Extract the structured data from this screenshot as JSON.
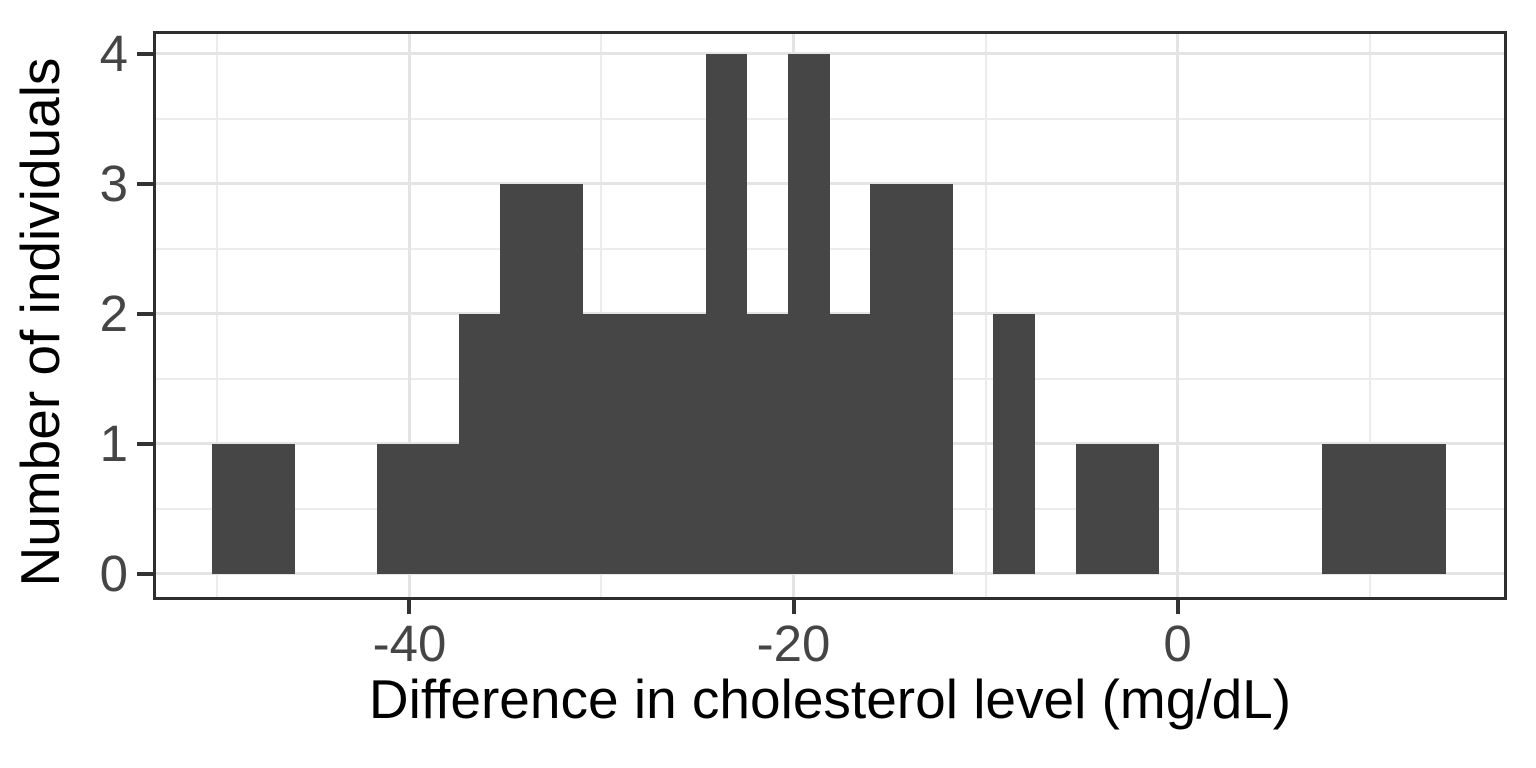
{
  "page": {
    "background": "#ffffff"
  },
  "chart_data": {
    "type": "bar",
    "subtype": "histogram",
    "title": "",
    "xlabel": "Difference in cholesterol level (mg/dL)",
    "ylabel": "Number of individuals",
    "grid": "on",
    "legend": "none",
    "xlim": [
      -53.2,
      17.0
    ],
    "ylim": [
      -0.18,
      4.15
    ],
    "bin_edges": [
      -50.26,
      -48.12,
      -45.98,
      -43.84,
      -41.7,
      -39.56,
      -37.42,
      -35.28,
      -33.14,
      -31.0,
      -28.85,
      -26.71,
      -24.57,
      -22.43,
      -20.29,
      -18.15,
      -16.01,
      -13.87,
      -11.73,
      -9.59,
      -7.45,
      -5.31,
      -3.17,
      -1.02,
      1.12,
      3.26,
      5.4,
      7.54,
      9.68,
      11.82,
      13.96
    ],
    "counts": [
      1,
      1,
      0,
      0,
      1,
      1,
      2,
      3,
      3,
      2,
      2,
      2,
      4,
      2,
      4,
      2,
      3,
      3,
      0,
      2,
      0,
      1,
      1,
      0,
      0,
      0,
      0,
      1,
      1,
      1
    ]
  },
  "axes": {
    "x": {
      "title": "Difference in cholesterol level (mg/dL)",
      "ticks": [
        -40,
        -20,
        0
      ],
      "tick_labels": [
        "-40",
        "-20",
        "0"
      ],
      "minor_ticks": [
        -50,
        -30,
        -10,
        10
      ]
    },
    "y": {
      "title": "Number of individuals",
      "ticks": [
        0,
        1,
        2,
        3,
        4
      ],
      "tick_labels": [
        "0",
        "1",
        "2",
        "3",
        "4"
      ],
      "minor_ticks": [
        0.5,
        1.5,
        2.5,
        3.5
      ]
    }
  },
  "style": {
    "bar_color": "#464646",
    "panel_border_color": "#2e2e2e",
    "grid_major_color": "#e4e4e4",
    "grid_minor_color": "#ececec",
    "tick_color": "#333333",
    "tick_label_color": "#454545",
    "axis_title_color": "#000000"
  }
}
